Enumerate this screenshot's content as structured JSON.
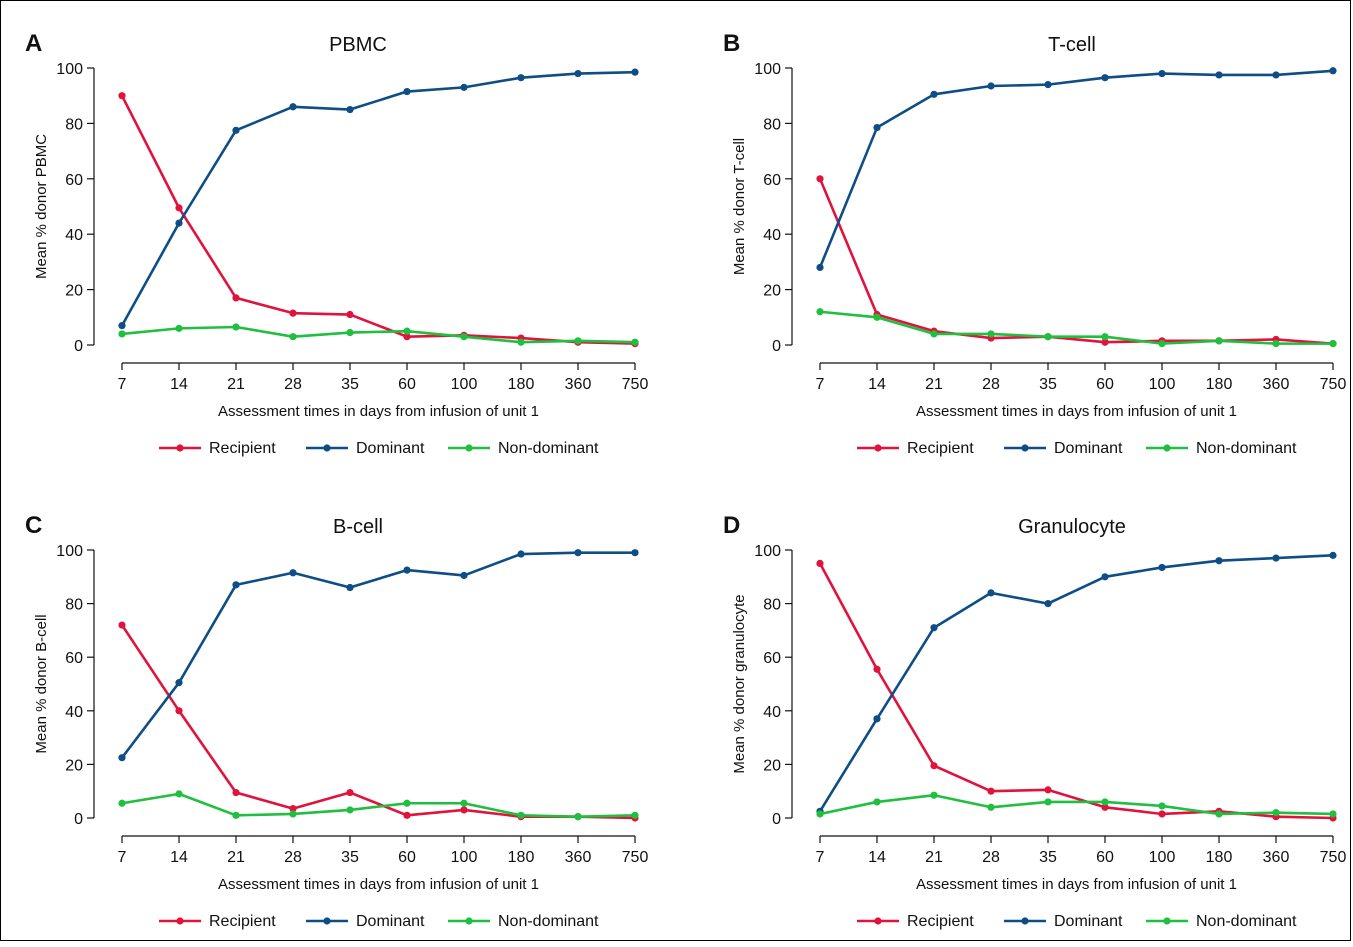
{
  "colors": {
    "recipient": "#e0133c",
    "dominant": "#0e4d85",
    "nondominant": "#1fbf3f"
  },
  "chart_data": [
    {
      "type": "line",
      "panel_label": "A",
      "title": "PBMC",
      "xlabel": "Assessment times in days from infusion of unit 1",
      "ylabel": "Mean % donor PBMC",
      "categories": [
        "7",
        "14",
        "21",
        "28",
        "35",
        "60",
        "100",
        "180",
        "360",
        "750"
      ],
      "yticks": [
        0,
        20,
        40,
        60,
        80,
        100
      ],
      "ylim": [
        0,
        100
      ],
      "legend_position": "bottom",
      "series": [
        {
          "name": "Recipient",
          "color": "#e0133c",
          "values": [
            90,
            49.5,
            17,
            11.5,
            11,
            3,
            3.5,
            2.5,
            1,
            0.5
          ]
        },
        {
          "name": "Dominant",
          "color": "#0e4d85",
          "values": [
            7,
            44,
            77.5,
            86,
            85,
            91.5,
            93,
            96.5,
            98,
            98.5
          ]
        },
        {
          "name": "Non-dominant",
          "color": "#1fbf3f",
          "values": [
            4,
            6,
            6.5,
            3,
            4.5,
            5,
            3,
            1,
            1.5,
            1
          ]
        }
      ]
    },
    {
      "type": "line",
      "panel_label": "B",
      "title": "T-cell",
      "xlabel": "Assessment times in days from infusion of unit 1",
      "ylabel": "Mean % donor T-cell",
      "categories": [
        "7",
        "14",
        "21",
        "28",
        "35",
        "60",
        "100",
        "180",
        "360",
        "750"
      ],
      "yticks": [
        0,
        20,
        40,
        60,
        80,
        100
      ],
      "ylim": [
        0,
        100
      ],
      "legend_position": "bottom",
      "series": [
        {
          "name": "Recipient",
          "color": "#e0133c",
          "values": [
            60,
            11,
            5,
            2.5,
            3,
            1,
            1.5,
            1.5,
            2,
            0.5
          ]
        },
        {
          "name": "Dominant",
          "color": "#0e4d85",
          "values": [
            28,
            78.5,
            90.5,
            93.5,
            94,
            96.5,
            98,
            97.5,
            97.5,
            99
          ]
        },
        {
          "name": "Non-dominant",
          "color": "#1fbf3f",
          "values": [
            12,
            10,
            4,
            4,
            3,
            3,
            0.5,
            1.5,
            0.5,
            0.5
          ]
        }
      ]
    },
    {
      "type": "line",
      "panel_label": "C",
      "title": "B-cell",
      "xlabel": "Assessment times in days from infusion of unit 1",
      "ylabel": "Mean % donor B-cell",
      "categories": [
        "7",
        "14",
        "21",
        "28",
        "35",
        "60",
        "100",
        "180",
        "360",
        "750"
      ],
      "yticks": [
        0,
        20,
        40,
        60,
        80,
        100
      ],
      "ylim": [
        0,
        100
      ],
      "legend_position": "bottom",
      "series": [
        {
          "name": "Recipient",
          "color": "#e0133c",
          "values": [
            72,
            40,
            9.5,
            3.5,
            9.5,
            1,
            3,
            0.5,
            0.5,
            0
          ]
        },
        {
          "name": "Dominant",
          "color": "#0e4d85",
          "values": [
            22.5,
            50.5,
            87,
            91.5,
            86,
            92.5,
            90.5,
            98.5,
            99,
            99
          ]
        },
        {
          "name": "Non-dominant",
          "color": "#1fbf3f",
          "values": [
            5.5,
            9,
            1,
            1.5,
            3,
            5.5,
            5.5,
            1,
            0.5,
            1
          ]
        }
      ]
    },
    {
      "type": "line",
      "panel_label": "D",
      "title": "Granulocyte",
      "xlabel": "Assessment times in days from infusion of unit 1",
      "ylabel": "Mean % donor granulocyte",
      "categories": [
        "7",
        "14",
        "21",
        "28",
        "35",
        "60",
        "100",
        "180",
        "360",
        "750"
      ],
      "yticks": [
        0,
        20,
        40,
        60,
        80,
        100
      ],
      "ylim": [
        0,
        100
      ],
      "legend_position": "bottom",
      "series": [
        {
          "name": "Recipient",
          "color": "#e0133c",
          "values": [
            95,
            55.5,
            19.5,
            10,
            10.5,
            4,
            1.5,
            2.5,
            0.5,
            0
          ]
        },
        {
          "name": "Dominant",
          "color": "#0e4d85",
          "values": [
            2.5,
            37,
            71,
            84,
            80,
            90,
            93.5,
            96,
            97,
            98
          ]
        },
        {
          "name": "Non-dominant",
          "color": "#1fbf3f",
          "values": [
            1.5,
            6,
            8.5,
            4,
            6,
            6,
            4.5,
            1.5,
            2,
            1.5
          ]
        }
      ]
    }
  ]
}
